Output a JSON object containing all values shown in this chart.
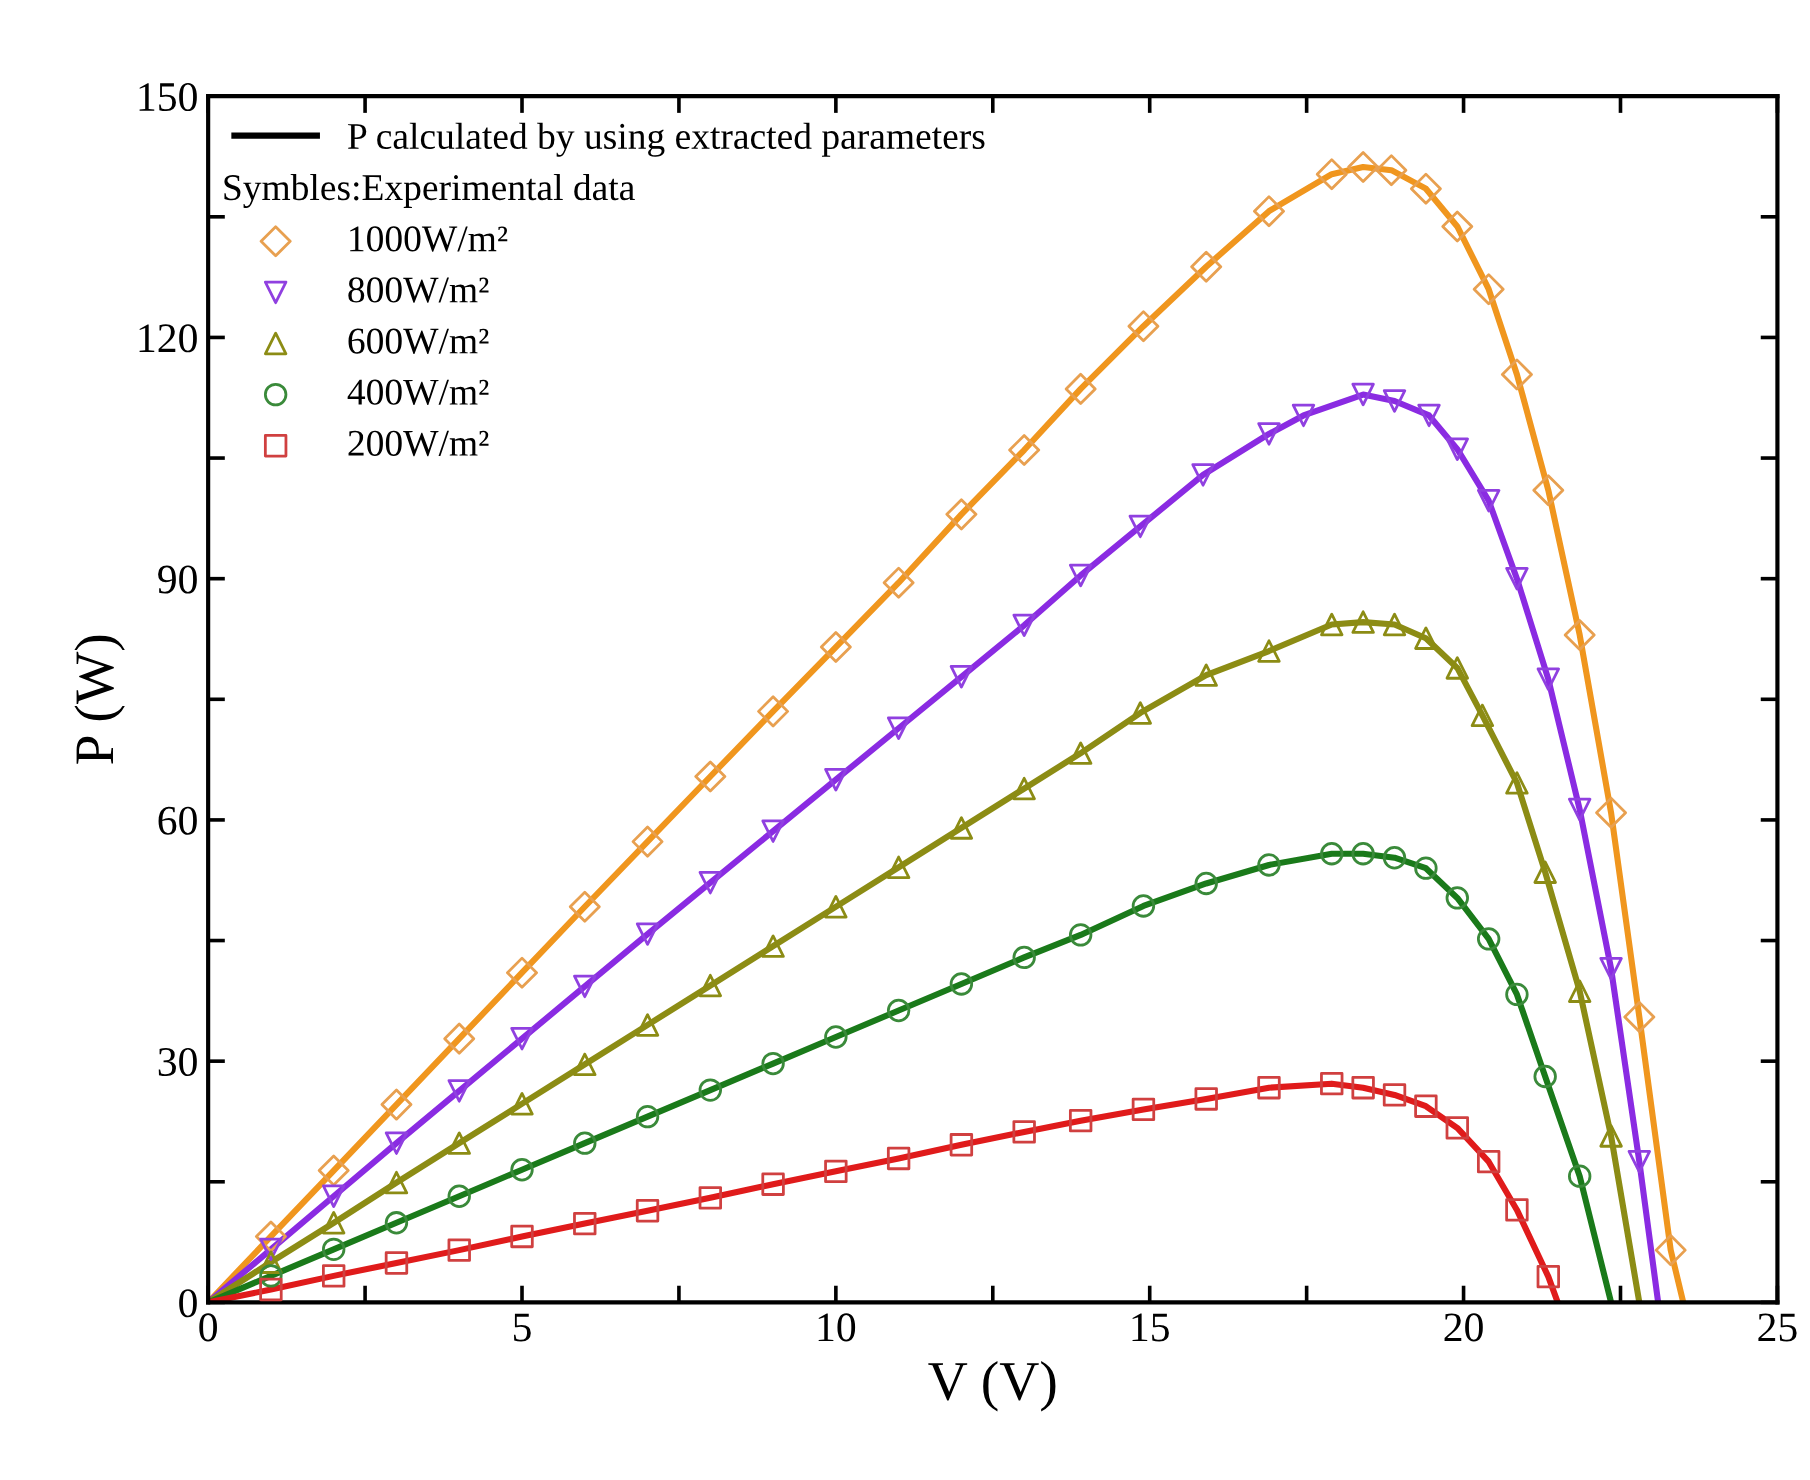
{
  "chart_data": {
    "type": "line",
    "xlabel": "V (V)",
    "ylabel": "P (W)",
    "annotations": [
      "P calculated by using extracted parameters"
    ],
    "legend_title": "Symbles:Experimental data",
    "xlim": [
      0,
      25
    ],
    "ylim": [
      0,
      150
    ],
    "xticks": [
      0,
      {
        "value": 2.5,
        "label": null
      },
      5,
      {
        "value": 7.5,
        "label": null
      },
      10,
      {
        "value": 12.5,
        "label": null
      },
      15,
      {
        "value": 17.5,
        "label": null
      },
      20,
      {
        "value": 22.5,
        "label": null
      },
      25
    ],
    "yticks": [
      0,
      {
        "value": 15,
        "label": null
      },
      30,
      {
        "value": 45,
        "label": null
      },
      60,
      {
        "value": 75,
        "label": null
      },
      90,
      {
        "value": 105,
        "label": null
      },
      120,
      {
        "value": 135,
        "label": null
      },
      150
    ],
    "grid": false,
    "legend": "top left",
    "series": [
      {
        "color": "#f0961e",
        "marker": "none",
        "x": [
          0,
          1,
          2,
          3,
          4,
          5,
          6,
          7,
          8,
          9,
          10,
          11,
          12,
          13,
          13.9,
          14.9,
          15.9,
          16.9,
          17.9,
          18.4,
          18.85,
          19.4,
          19.9,
          20.4,
          20.85,
          21.35,
          21.85,
          22.35,
          22.8,
          23.3,
          23.5
        ],
        "values": [
          0,
          8.2,
          16.4,
          24.6,
          32.8,
          41,
          49.2,
          57.3,
          65.4,
          73.5,
          81.5,
          89.5,
          98,
          106,
          113.6,
          121.4,
          128.8,
          135.7,
          140.3,
          141.2,
          140.8,
          138.5,
          133.8,
          126,
          115.4,
          101,
          83,
          60.9,
          35.5,
          6.5,
          0
        ]
      },
      {
        "color": "#8a2be2",
        "marker": "none",
        "x": [
          0,
          1,
          2,
          3,
          4,
          5,
          6,
          7,
          8,
          9,
          10,
          11,
          12,
          13,
          13.9,
          14.85,
          15.85,
          16.9,
          17.45,
          18.4,
          18.9,
          19.45,
          19.9,
          20.4,
          20.85,
          21.35,
          21.85,
          22.35,
          22.8,
          23.1
        ],
        "values": [
          0,
          6.6,
          13.2,
          19.8,
          26.3,
          32.8,
          39.3,
          45.8,
          52.2,
          58.6,
          65,
          71.4,
          77.8,
          84.2,
          90.4,
          96.5,
          102.9,
          108,
          110.3,
          112.9,
          112.1,
          110.3,
          106.1,
          99.7,
          90,
          77.5,
          61.3,
          41.5,
          17.5,
          0
        ]
      },
      {
        "color": "#8c8c14",
        "marker": "none",
        "x": [
          0,
          1,
          2,
          3,
          4,
          5,
          6,
          7,
          8,
          9,
          10,
          11,
          12,
          13,
          13.9,
          14.85,
          15.9,
          16.9,
          17.9,
          18.4,
          18.9,
          19.4,
          19.9,
          20.3,
          20.85,
          21.3,
          21.85,
          22.35,
          22.8
        ],
        "values": [
          0,
          5,
          9.9,
          14.9,
          19.8,
          24.7,
          29.6,
          34.5,
          39.4,
          44.3,
          49.2,
          54.1,
          59,
          63.9,
          68.3,
          73.3,
          78,
          81,
          84.3,
          84.6,
          84.3,
          82.6,
          78.9,
          73,
          64.6,
          53.5,
          38.7,
          20.7,
          0
        ]
      },
      {
        "color": "#1a7a1a",
        "marker": "none",
        "x": [
          0,
          1,
          2,
          3,
          4,
          5,
          6,
          7,
          8,
          9,
          10,
          11,
          12,
          13,
          13.9,
          14.9,
          15.9,
          16.9,
          17.9,
          18.4,
          18.9,
          19.4,
          19.9,
          20.4,
          20.85,
          21.3,
          21.85,
          22.35
        ],
        "values": [
          0,
          3.3,
          6.6,
          9.9,
          13.2,
          16.5,
          19.8,
          23.1,
          26.4,
          29.7,
          33,
          36.3,
          39.6,
          42.9,
          45.7,
          49.3,
          52.1,
          54.4,
          55.8,
          55.8,
          55.3,
          54,
          50.3,
          45.2,
          38.3,
          28.1,
          15.7,
          0
        ]
      },
      {
        "color": "#e01b1b",
        "marker": "none",
        "x": [
          0,
          1,
          2,
          3,
          4,
          5,
          6,
          7,
          8,
          9,
          10,
          11,
          12,
          13,
          13.9,
          14.9,
          15.9,
          16.9,
          17.9,
          18.4,
          18.9,
          19.4,
          19.9,
          20.4,
          20.85,
          21.35,
          21.5
        ],
        "values": [
          0,
          1.6,
          3.3,
          4.9,
          6.5,
          8.2,
          9.8,
          11.4,
          13,
          14.7,
          16.3,
          17.9,
          19.6,
          21.2,
          22.6,
          24,
          25.3,
          26.7,
          27.2,
          26.7,
          25.8,
          24.4,
          21.7,
          17.5,
          11.5,
          3.2,
          0
        ]
      },
      {
        "type": "scatter",
        "name": "1000W/m²",
        "color": "#e8a050",
        "marker": "diamond",
        "x": [
          1,
          2,
          3,
          4,
          5,
          6,
          7,
          8,
          9,
          10,
          11,
          12,
          13,
          13.9,
          14.9,
          15.9,
          16.9,
          17.9,
          18.4,
          18.85,
          19.4,
          19.9,
          20.4,
          20.85,
          21.35,
          21.85,
          22.35,
          22.8,
          23.3
        ],
        "values": [
          8.2,
          16.4,
          24.6,
          32.8,
          41,
          49.2,
          57.3,
          65.4,
          73.5,
          81.5,
          89.5,
          98,
          106,
          113.6,
          121.4,
          128.8,
          135.7,
          140.3,
          141.2,
          140.8,
          138.5,
          133.8,
          126,
          115.4,
          101,
          83,
          60.9,
          35.5,
          6.5
        ]
      },
      {
        "type": "scatter",
        "name": "800W/m²",
        "color": "#9040e0",
        "marker": "triangle_down",
        "x": [
          1,
          2,
          3,
          4,
          5,
          6,
          7,
          8,
          9,
          10,
          11,
          12,
          13,
          13.9,
          14.85,
          15.85,
          16.9,
          17.45,
          18.4,
          18.9,
          19.45,
          19.9,
          20.4,
          20.85,
          21.35,
          21.85,
          22.35,
          22.8
        ],
        "values": [
          6.6,
          13.2,
          19.8,
          26.3,
          32.8,
          39.3,
          45.8,
          52.2,
          58.6,
          65,
          71.4,
          77.8,
          84.2,
          90.4,
          96.5,
          102.9,
          108,
          110.3,
          112.9,
          112.1,
          110.3,
          106.1,
          99.7,
          90,
          77.5,
          61.3,
          41.5,
          17.5
        ]
      },
      {
        "type": "scatter",
        "name": "600W/m²",
        "color": "#8c8c14",
        "marker": "triangle",
        "x": [
          1,
          2,
          3,
          4,
          5,
          6,
          7,
          8,
          9,
          10,
          11,
          12,
          13,
          13.9,
          14.85,
          15.9,
          16.9,
          17.9,
          18.4,
          18.9,
          19.4,
          19.9,
          20.3,
          20.85,
          21.3,
          21.85,
          22.35
        ],
        "values": [
          5,
          9.9,
          14.9,
          19.8,
          24.7,
          29.6,
          34.5,
          39.4,
          44.3,
          49.2,
          54.1,
          59,
          63.9,
          68.3,
          73.3,
          78,
          81,
          84.3,
          84.6,
          84.3,
          82.6,
          78.9,
          73,
          64.6,
          53.5,
          38.7,
          20.7
        ]
      },
      {
        "type": "scatter",
        "name": "400W/m²",
        "color": "#3a8a3a",
        "marker": "circle",
        "x": [
          1,
          2,
          3,
          4,
          5,
          6,
          7,
          8,
          9,
          10,
          11,
          12,
          13,
          13.9,
          14.9,
          15.9,
          16.9,
          17.9,
          18.4,
          18.9,
          19.4,
          19.9,
          20.4,
          20.85,
          21.3,
          21.85
        ],
        "values": [
          3.3,
          6.6,
          9.9,
          13.2,
          16.5,
          19.8,
          23.1,
          26.4,
          29.7,
          33,
          36.3,
          39.6,
          42.9,
          45.7,
          49.3,
          52.1,
          54.4,
          55.8,
          55.8,
          55.3,
          54,
          50.3,
          45.2,
          38.3,
          28.1,
          15.7
        ]
      },
      {
        "type": "scatter",
        "name": "200W/m²",
        "color": "#d04040",
        "marker": "square",
        "x": [
          1,
          2,
          3,
          4,
          5,
          6,
          7,
          8,
          9,
          10,
          11,
          12,
          13,
          13.9,
          14.9,
          15.9,
          16.9,
          17.9,
          18.4,
          18.9,
          19.4,
          19.9,
          20.4,
          20.85,
          21.35
        ],
        "values": [
          1.6,
          3.3,
          4.9,
          6.5,
          8.2,
          9.8,
          11.4,
          13,
          14.7,
          16.3,
          17.9,
          19.6,
          21.2,
          22.6,
          24,
          25.3,
          26.7,
          27.2,
          26.7,
          25.8,
          24.4,
          21.7,
          17.5,
          11.5,
          3.2
        ]
      }
    ]
  }
}
